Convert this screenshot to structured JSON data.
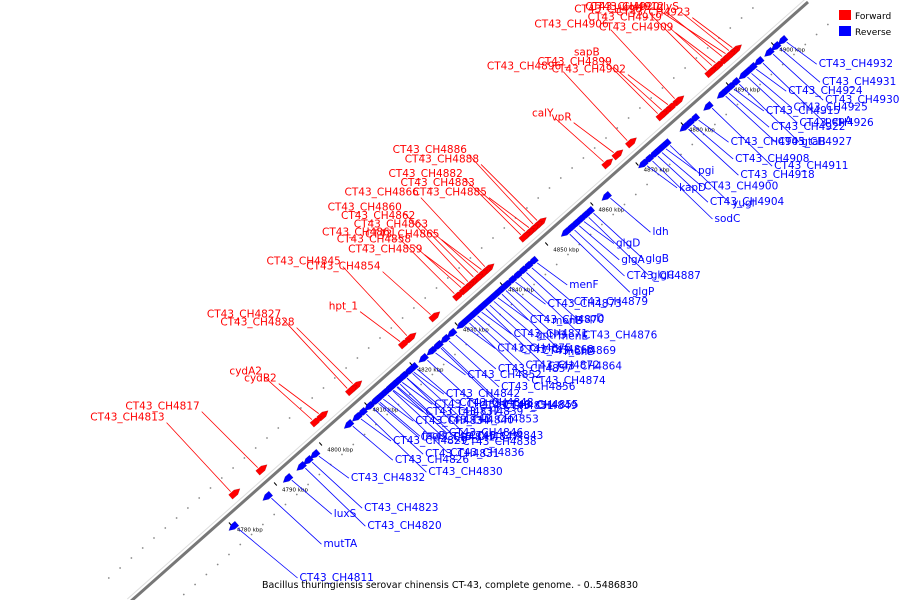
{
  "title": "Bacillus thuringiensis serovar chinensis CT-43, complete genome. - 0..5486830",
  "legend": [
    {
      "label": "Forward",
      "color": "#ff0000"
    },
    {
      "label": "Reverse",
      "color": "#0000ff"
    }
  ],
  "colors": {
    "forward": "#ff0000",
    "reverse": "#0000ff",
    "backbone": "#777777"
  },
  "ticks": [
    "4780 kbp",
    "4790 kbp",
    "4800 kbp",
    "4810 kbp",
    "4820 kbp",
    "4830 kbp",
    "4840 kbp",
    "4850 kbp",
    "4860 kbp",
    "4870 kbp",
    "4880 kbp",
    "4890 kbp",
    "4900 kbp"
  ],
  "forward_labels": [
    {
      "text": "CT43_CH4923",
      "a": 0.9
    },
    {
      "text": "glyS",
      "a": 0.895
    },
    {
      "text": "CT43_CH4912",
      "a": 0.885
    },
    {
      "text": "CT43_CH4920",
      "a": 0.89
    },
    {
      "text": "CT43_CH4909",
      "a": 0.875
    },
    {
      "text": "CT43_CH4919",
      "a": 0.87
    },
    {
      "text": "CT43_CH4907",
      "a": 0.862
    },
    {
      "text": "CT43_CH4906",
      "a": 0.815
    },
    {
      "text": "CT43_CH4902",
      "a": 0.805
    },
    {
      "text": "CT43_CH4899",
      "a": 0.796
    },
    {
      "text": "sapB",
      "a": 0.79
    },
    {
      "text": "CT43_CH4896",
      "a": 0.745
    },
    {
      "text": "vpR",
      "a": 0.725
    },
    {
      "text": "calY",
      "a": 0.71
    },
    {
      "text": "CT43_CH4888",
      "a": 0.612
    },
    {
      "text": "CT43_CH4886",
      "a": 0.606
    },
    {
      "text": "CT43_CH4885",
      "a": 0.6
    },
    {
      "text": "CT43_CH4883",
      "a": 0.594
    },
    {
      "text": "CT43_CH4882",
      "a": 0.588
    },
    {
      "text": "CT43_CH4866",
      "a": 0.535
    },
    {
      "text": "CT43_CH4865",
      "a": 0.53
    },
    {
      "text": "CT43_CH4863",
      "a": 0.525
    },
    {
      "text": "CT43_CH4862",
      "a": 0.518
    },
    {
      "text": "CT43_CH4860",
      "a": 0.51
    },
    {
      "text": "CT43_CH4859",
      "a": 0.505
    },
    {
      "text": "CT43_CH4858",
      "a": 0.5
    },
    {
      "text": "CT43_CH4861",
      "a": 0.49
    },
    {
      "text": "CT43_CH4845",
      "a": 0.42
    },
    {
      "text": "hpt_1",
      "a": 0.41
    },
    {
      "text": "CT43_CH4854",
      "a": 0.455
    },
    {
      "text": "CT43_CH4828",
      "a": 0.34
    },
    {
      "text": "CT43_CH4827",
      "a": 0.332
    },
    {
      "text": "cydB2",
      "a": 0.29
    },
    {
      "text": "cydA2",
      "a": 0.28
    },
    {
      "text": "CT43_CH4817",
      "a": 0.2
    },
    {
      "text": "CT43_CH4813",
      "a": 0.16
    }
  ],
  "reverse_labels": [
    {
      "text": "CT43_CH4932",
      "a": 0.95
    },
    {
      "text": "CT43_CH4931",
      "a": 0.94
    },
    {
      "text": "CT43_CH4930",
      "a": 0.93
    },
    {
      "text": "pepA",
      "a": 0.915
    },
    {
      "text": "CT43_CH4924",
      "a": 0.905
    },
    {
      "text": "CT43_CH4925",
      "a": 0.898
    },
    {
      "text": "CT43_CH4926",
      "a": 0.892
    },
    {
      "text": "gtaB",
      "a": 0.88
    },
    {
      "text": "CT43_CH4915",
      "a": 0.872
    },
    {
      "text": "CT43_CH4922",
      "a": 0.865
    },
    {
      "text": "CT43_CH4927",
      "a": 0.86
    },
    {
      "text": "CT43_CH4911",
      "a": 0.84
    },
    {
      "text": "CT43_CH4905",
      "a": 0.82
    },
    {
      "text": "CT43_CH4908",
      "a": 0.812
    },
    {
      "text": "CT43_CH4918",
      "a": 0.805
    },
    {
      "text": "yugI",
      "a": 0.778
    },
    {
      "text": "pgi",
      "a": 0.772
    },
    {
      "text": "CT43_CH4900",
      "a": 0.766
    },
    {
      "text": "CT43_CH4904",
      "a": 0.76
    },
    {
      "text": "sodC",
      "a": 0.752
    },
    {
      "text": "kapD",
      "a": 0.744
    },
    {
      "text": "ldh",
      "a": 0.69
    },
    {
      "text": "glgB",
      "a": 0.665
    },
    {
      "text": "glgC",
      "a": 0.658
    },
    {
      "text": "glgD",
      "a": 0.651
    },
    {
      "text": "glgA",
      "a": 0.644
    },
    {
      "text": "CT43_CH4887",
      "a": 0.637
    },
    {
      "text": "glgP",
      "a": 0.63
    },
    {
      "text": "menF",
      "a": 0.582
    },
    {
      "text": "CT43_CH4879",
      "a": 0.574
    },
    {
      "text": "cspD",
      "a": 0.566
    },
    {
      "text": "CT43_CH4876",
      "a": 0.558
    },
    {
      "text": "CT43_CH4873",
      "a": 0.55
    },
    {
      "text": "menB",
      "a": 0.542
    },
    {
      "text": "menE",
      "a": 0.536
    },
    {
      "text": "menD",
      "a": 0.53
    },
    {
      "text": "CT43_CH4870",
      "a": 0.524
    },
    {
      "text": "gntP3",
      "a": 0.518
    },
    {
      "text": "CT43_CH4869",
      "a": 0.512
    },
    {
      "text": "CT43_CH4864",
      "a": 0.506
    },
    {
      "text": "CT43_CH4871",
      "a": 0.5
    },
    {
      "text": "CT43_CH4868",
      "a": 0.494
    },
    {
      "text": "CT43_CH4872",
      "a": 0.488
    },
    {
      "text": "CT43_CH4874",
      "a": 0.482
    },
    {
      "text": "CT43_CH4875",
      "a": 0.476
    },
    {
      "text": "CT43_CH4857",
      "a": 0.462
    },
    {
      "text": "CT43_CH4856",
      "a": 0.452
    },
    {
      "text": "CT43_CH4855",
      "a": 0.442
    },
    {
      "text": "CT43_CH4852",
      "a": 0.432
    },
    {
      "text": "CT43_CH4848",
      "a": 0.405
    },
    {
      "text": "CT43_CH4853",
      "a": 0.398
    },
    {
      "text": "CT43_CH4843",
      "a": 0.39
    },
    {
      "text": "CT43_CH4850",
      "a": 0.383
    },
    {
      "text": "CT43_CH4840",
      "a": 0.376
    },
    {
      "text": "CT43_CH4847",
      "a": 0.369
    },
    {
      "text": "CT43_CH4836",
      "a": 0.362
    },
    {
      "text": "CT43_CH4834",
      "a": 0.355
    },
    {
      "text": "CT43_CH4841",
      "a": 0.348
    },
    {
      "text": "CT43_CH4831",
      "a": 0.34
    },
    {
      "text": "CT43_CH4849",
      "a": 0.44
    },
    {
      "text": "CT43_CH4842",
      "a": 0.4
    },
    {
      "text": "CT43_CH4839",
      "a": 0.39
    },
    {
      "text": "CT43_CH4851",
      "a": 0.42
    },
    {
      "text": "CT43_CH4838",
      "a": 0.38
    },
    {
      "text": "CT43_CH4837",
      "a": 0.37
    },
    {
      "text": "feoB",
      "a": 0.35
    },
    {
      "text": "CT43_CH4846",
      "a": 0.375
    },
    {
      "text": "CT43_CH4830",
      "a": 0.33
    },
    {
      "text": "CT43_CH4829",
      "a": 0.322
    },
    {
      "text": "CT43_CH4826",
      "a": 0.31
    },
    {
      "text": "CT43_CH4823",
      "a": 0.25
    },
    {
      "text": "CT43_CH4820",
      "a": 0.24
    },
    {
      "text": "CT43_CH4832",
      "a": 0.26
    },
    {
      "text": "luxS",
      "a": 0.22
    },
    {
      "text": "mutTA",
      "a": 0.19
    },
    {
      "text": "CT43_CH4811",
      "a": 0.14
    }
  ]
}
